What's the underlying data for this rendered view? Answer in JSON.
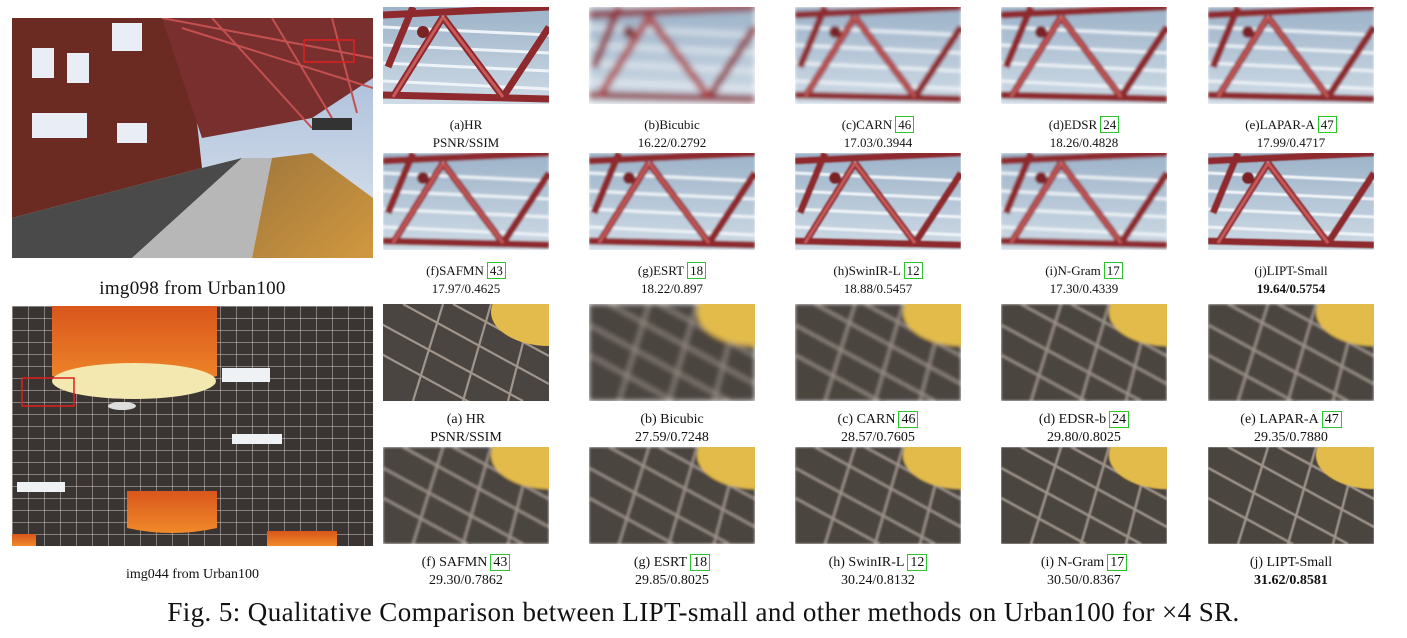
{
  "overviews": [
    {
      "caption": "img098 from Urban100"
    },
    {
      "caption": "img044 from Urban100"
    }
  ],
  "row1": [
    {
      "name": "(a)HR",
      "ref": "",
      "score": "PSNR/SSIM"
    },
    {
      "name": "(b)Bicubic",
      "ref": "",
      "score": "16.22/0.2792"
    },
    {
      "name": "(c)CARN",
      "ref": "46",
      "score": "17.03/0.3944"
    },
    {
      "name": "(d)EDSR",
      "ref": "24",
      "score": "18.26/0.4828"
    },
    {
      "name": "(e)LAPAR-A",
      "ref": "47",
      "score": "17.99/0.4717"
    }
  ],
  "row2": [
    {
      "name": "(f)SAFMN",
      "ref": "43",
      "score": "17.97/0.4625"
    },
    {
      "name": "(g)ESRT",
      "ref": "18",
      "score": "18.22/0.897"
    },
    {
      "name": "(h)SwinIR-L",
      "ref": "12",
      "score": "18.88/0.5457"
    },
    {
      "name": "(i)N-Gram",
      "ref": "17",
      "score": "17.30/0.4339"
    },
    {
      "name": "(j)LIPT-Small",
      "ref": "",
      "score": "19.64/0.5754"
    }
  ],
  "row3": [
    {
      "name": "(a) HR",
      "ref": "",
      "score": "PSNR/SSIM"
    },
    {
      "name": "(b) Bicubic",
      "ref": "",
      "score": "27.59/0.7248"
    },
    {
      "name": "(c) CARN",
      "ref": "46",
      "score": "28.57/0.7605"
    },
    {
      "name": "(d) EDSR-b",
      "ref": "24",
      "score": "29.80/0.8025"
    },
    {
      "name": "(e) LAPAR-A",
      "ref": "47",
      "score": "29.35/0.7880"
    }
  ],
  "row4": [
    {
      "name": "(f) SAFMN",
      "ref": "43",
      "score": "29.30/0.7862"
    },
    {
      "name": "(g) ESRT",
      "ref": "18",
      "score": "29.85/0.8025"
    },
    {
      "name": "(h) SwinIR-L",
      "ref": "12",
      "score": "30.24/0.8132"
    },
    {
      "name": "(i) N-Gram",
      "ref": "17",
      "score": "30.50/0.8367"
    },
    {
      "name": "(j) LIPT-Small",
      "ref": "",
      "score": "31.62/0.8581"
    }
  ],
  "figure_caption": "Fig. 5: Qualitative Comparison between LIPT-small and other methods on Urban100 for ×4 SR.",
  "colors": {
    "highlight_box": "#e0201c",
    "ref_box": "#2ec22e",
    "truss": "#b03a3a",
    "lamp": "#e8c84a"
  }
}
